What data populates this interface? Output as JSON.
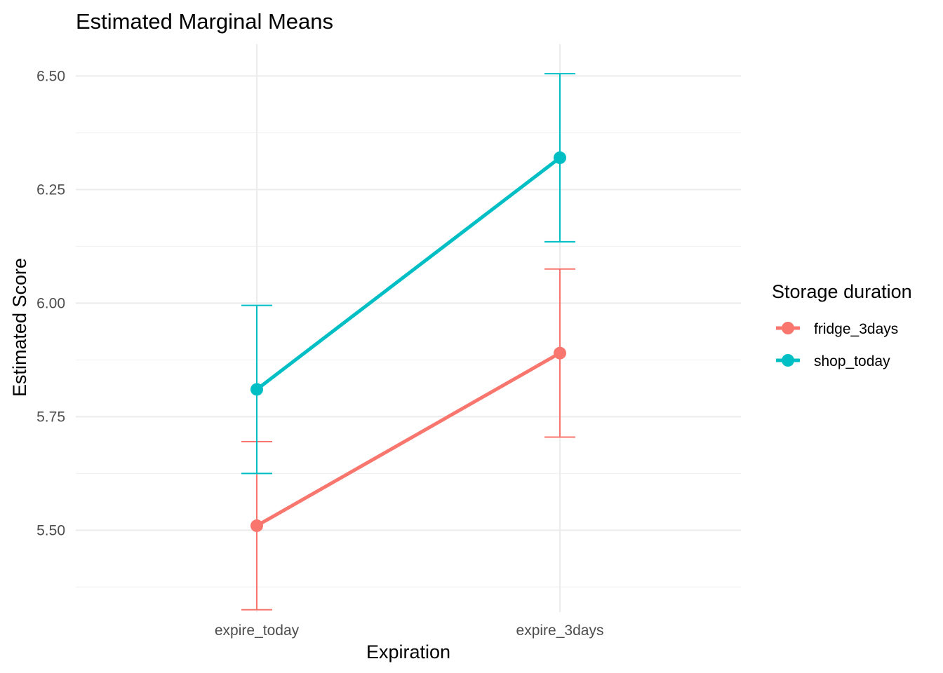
{
  "chart_data": {
    "type": "line",
    "title": "Estimated Marginal Means",
    "xlabel": "Expiration",
    "ylabel": "Estimated Score",
    "categories": [
      "expire_today",
      "expire_3days"
    ],
    "ylim": [
      5.32,
      6.57
    ],
    "yticks": [
      5.5,
      5.75,
      6.0,
      6.25,
      6.5
    ],
    "ytick_labels": [
      "5.50",
      "5.75",
      "6.00",
      "6.25",
      "6.50"
    ],
    "grid": true,
    "legend": {
      "title": "Storage duration",
      "position": "right"
    },
    "series": [
      {
        "name": "fridge_3days",
        "color": "#F8766D",
        "values": [
          5.51,
          5.89
        ],
        "lower": [
          5.325,
          5.705
        ],
        "upper": [
          5.695,
          6.075
        ]
      },
      {
        "name": "shop_today",
        "color": "#00BFC4",
        "values": [
          5.81,
          6.32
        ],
        "lower": [
          5.625,
          6.135
        ],
        "upper": [
          5.995,
          6.505
        ]
      }
    ]
  }
}
